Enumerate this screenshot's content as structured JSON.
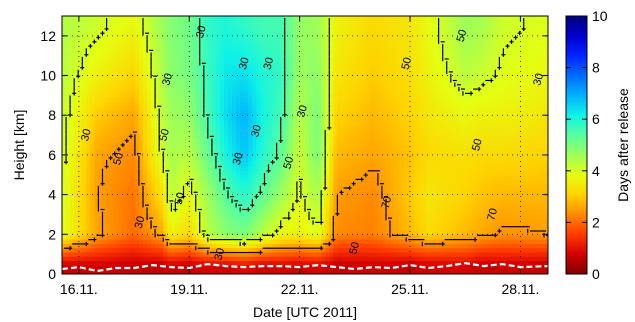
{
  "chart_data": {
    "type": "heatmap",
    "title": "",
    "xlabel": "Date [UTC 2011]",
    "ylabel": "Height [km]",
    "colorbar_label": "Days after release",
    "x_range": [
      "2011-11-15T13:00",
      "2011-11-28T18:00"
    ],
    "y_range": [
      0,
      13
    ],
    "c_range": [
      0,
      10
    ],
    "x_ticks": [
      {
        "date": "2011-11-16",
        "label": "16.11."
      },
      {
        "date": "2011-11-19",
        "label": "19.11."
      },
      {
        "date": "2011-11-22",
        "label": "22.11."
      },
      {
        "date": "2011-11-25",
        "label": "25.11."
      },
      {
        "date": "2011-11-28",
        "label": "28.11."
      }
    ],
    "y_ticks": [
      0,
      2,
      4,
      6,
      8,
      10,
      12
    ],
    "c_ticks": [
      0,
      2,
      4,
      6,
      8,
      10
    ],
    "colormap": [
      "#7f0000",
      "#d30000",
      "#ff3a00",
      "#ff8b00",
      "#ffd300",
      "#e4ff13",
      "#9dff5a",
      "#56ffa0",
      "#10f3e6",
      "#00b1ff",
      "#006bff",
      "#0024ff",
      "#0000cc",
      "#000080"
    ],
    "grid": true,
    "grid_style": "dotted",
    "release_date": "2011-11-15T13:00",
    "age_profiles": [
      {
        "date": "2011-11-15T13:00",
        "age_days": [
          0.6,
          3.9,
          4.0,
          4.1,
          4.2,
          4.3,
          4.4
        ]
      },
      {
        "date": "2011-11-16T12:00",
        "age_days": [
          0.7,
          2.6,
          2.5,
          2.6,
          3.0,
          3.6,
          4.1
        ]
      },
      {
        "date": "2011-11-17T12:00",
        "age_days": [
          0.6,
          2.0,
          2.1,
          2.3,
          2.6,
          3.1,
          3.7
        ]
      },
      {
        "date": "2011-11-18T06:00",
        "age_days": [
          0.6,
          2.6,
          3.3,
          4.0,
          4.2,
          4.4,
          4.6
        ]
      },
      {
        "date": "2011-11-18T12:00",
        "age_days": [
          0.7,
          3.6,
          4.3,
          4.5,
          4.6,
          4.8,
          4.9
        ]
      },
      {
        "date": "2011-11-19T00:00",
        "age_days": [
          0.6,
          3.2,
          3.8,
          4.3,
          4.7,
          5.0,
          5.1
        ]
      },
      {
        "date": "2011-11-19T12:00",
        "age_days": [
          0.8,
          4.3,
          4.6,
          5.2,
          5.6,
          5.7,
          5.8
        ]
      },
      {
        "date": "2011-11-20T00:00",
        "age_days": [
          0.7,
          4.8,
          5.4,
          6.1,
          6.4,
          6.3,
          6.0
        ]
      },
      {
        "date": "2011-11-20T12:00",
        "age_days": [
          0.9,
          5.0,
          5.9,
          6.7,
          6.9,
          6.4,
          5.8
        ]
      },
      {
        "date": "2011-11-21T00:00",
        "age_days": [
          0.7,
          4.3,
          5.3,
          5.9,
          6.1,
          6.0,
          5.6
        ]
      },
      {
        "date": "2011-11-21T12:00",
        "age_days": [
          0.8,
          3.7,
          4.6,
          5.3,
          5.6,
          5.8,
          5.6
        ]
      },
      {
        "date": "2011-11-22T00:00",
        "age_days": [
          0.7,
          3.6,
          3.9,
          4.1,
          4.3,
          4.6,
          4.7
        ]
      },
      {
        "date": "2011-11-22T12:00",
        "age_days": [
          0.8,
          3.9,
          4.5,
          5.0,
          5.0,
          4.8,
          4.6
        ]
      },
      {
        "date": "2011-11-23T00:00",
        "age_days": [
          0.6,
          2.3,
          2.5,
          2.8,
          3.1,
          3.4,
          3.6
        ]
      },
      {
        "date": "2011-11-24T00:00",
        "age_days": [
          0.7,
          2.2,
          2.3,
          2.6,
          2.8,
          3.0,
          3.2
        ]
      },
      {
        "date": "2011-11-25T00:00",
        "age_days": [
          0.6,
          2.8,
          3.0,
          2.9,
          3.1,
          3.3,
          3.4
        ]
      },
      {
        "date": "2011-11-25T12:00",
        "age_days": [
          0.7,
          3.2,
          3.4,
          3.2,
          3.4,
          3.6,
          3.8
        ]
      },
      {
        "date": "2011-11-26T12:00",
        "age_days": [
          0.8,
          2.8,
          3.1,
          3.3,
          3.7,
          4.3,
          4.6
        ]
      },
      {
        "date": "2011-11-27T00:00",
        "age_days": [
          0.6,
          2.6,
          2.9,
          3.2,
          3.6,
          4.1,
          4.5
        ]
      },
      {
        "date": "2011-11-27T12:00",
        "age_days": [
          0.7,
          2.4,
          2.8,
          3.2,
          3.6,
          3.9,
          4.1
        ]
      },
      {
        "date": "2011-11-28T18:00",
        "age_days": [
          0.6,
          2.5,
          2.8,
          3.1,
          3.4,
          3.7,
          3.9
        ]
      }
    ],
    "age_profile_heights_km": [
      0.4,
      2,
      4,
      6,
      8,
      10,
      12.5
    ],
    "contour_labels": [
      {
        "text": "30",
        "date": "2011-11-16T05:00",
        "height_km": 7.0
      },
      {
        "text": "50",
        "date": "2011-11-17T02:00",
        "height_km": 5.8
      },
      {
        "text": "30",
        "date": "2011-11-17T16:00",
        "height_km": 2.6
      },
      {
        "text": "50",
        "date": "2011-11-18T08:00",
        "height_km": 7.0
      },
      {
        "text": "30",
        "date": "2011-11-18T10:00",
        "height_km": 9.8
      },
      {
        "text": "50",
        "date": "2011-11-18T18:00",
        "height_km": 3.8
      },
      {
        "text": "30",
        "date": "2011-11-20T12:00",
        "height_km": 10.6
      },
      {
        "text": "30",
        "date": "2011-11-20T20:00",
        "height_km": 7.2
      },
      {
        "text": "30",
        "date": "2011-11-21T04:00",
        "height_km": 10.6
      },
      {
        "text": "30",
        "date": "2011-11-20T08:00",
        "height_km": 5.8
      },
      {
        "text": "50",
        "date": "2011-11-21T17:00",
        "height_km": 5.6
      },
      {
        "text": "30",
        "date": "2011-11-22T02:00",
        "height_km": 8.2
      },
      {
        "text": "30",
        "date": "2011-11-19T08:00",
        "height_km": 12.2
      },
      {
        "text": "70",
        "date": "2011-11-24T09:00",
        "height_km": 3.6
      },
      {
        "text": "50",
        "date": "2011-11-24T22:00",
        "height_km": 10.6
      },
      {
        "text": "50",
        "date": "2011-11-26T10:00",
        "height_km": 12.0
      },
      {
        "text": "50",
        "date": "2011-11-26T20:00",
        "height_km": 6.5
      },
      {
        "text": "30",
        "date": "2011-11-28T12:00",
        "height_km": 9.8
      },
      {
        "text": "70",
        "date": "2011-11-27T06:00",
        "height_km": 3.0
      },
      {
        "text": "50",
        "date": "2011-11-23T12:00",
        "height_km": 1.3
      },
      {
        "text": "30",
        "date": "2011-11-19T20:00",
        "height_km": 1.0
      }
    ],
    "boundary_layer_height_km": [
      {
        "date": "2011-11-15T13:00",
        "value": 0.25
      },
      {
        "date": "2011-11-16T00:00",
        "value": 0.35
      },
      {
        "date": "2011-11-16T12:00",
        "value": 0.15
      },
      {
        "date": "2011-11-17T00:00",
        "value": 0.3
      },
      {
        "date": "2011-11-17T12:00",
        "value": 0.3
      },
      {
        "date": "2011-11-18T00:00",
        "value": 0.45
      },
      {
        "date": "2011-11-18T12:00",
        "value": 0.35
      },
      {
        "date": "2011-11-19T00:00",
        "value": 0.3
      },
      {
        "date": "2011-11-19T12:00",
        "value": 0.5
      },
      {
        "date": "2011-11-20T00:00",
        "value": 0.4
      },
      {
        "date": "2011-11-20T12:00",
        "value": 0.35
      },
      {
        "date": "2011-11-21T00:00",
        "value": 0.4
      },
      {
        "date": "2011-11-21T12:00",
        "value": 0.4
      },
      {
        "date": "2011-11-22T00:00",
        "value": 0.35
      },
      {
        "date": "2011-11-22T12:00",
        "value": 0.45
      },
      {
        "date": "2011-11-23T00:00",
        "value": 0.35
      },
      {
        "date": "2011-11-23T12:00",
        "value": 0.25
      },
      {
        "date": "2011-11-24T00:00",
        "value": 0.35
      },
      {
        "date": "2011-11-24T12:00",
        "value": 0.3
      },
      {
        "date": "2011-11-25T00:00",
        "value": 0.45
      },
      {
        "date": "2011-11-25T12:00",
        "value": 0.3
      },
      {
        "date": "2011-11-26T00:00",
        "value": 0.4
      },
      {
        "date": "2011-11-26T12:00",
        "value": 0.55
      },
      {
        "date": "2011-11-27T00:00",
        "value": 0.4
      },
      {
        "date": "2011-11-27T12:00",
        "value": 0.5
      },
      {
        "date": "2011-11-28T00:00",
        "value": 0.35
      },
      {
        "date": "2011-11-28T18:00",
        "value": 0.4
      }
    ],
    "boundary_layer_style": {
      "color": "#ffffff",
      "dashed": true
    }
  }
}
